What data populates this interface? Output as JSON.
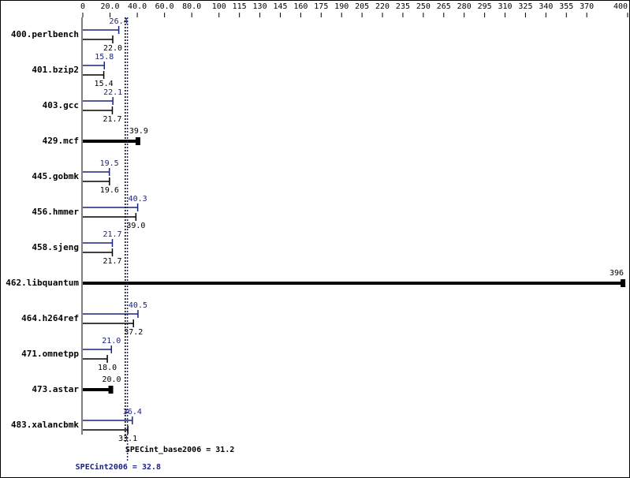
{
  "chart_data": {
    "type": "bar",
    "orientation": "horizontal",
    "categories": [
      "400.perlbench",
      "401.bzip2",
      "403.gcc",
      "429.mcf",
      "445.gobmk",
      "456.hmmer",
      "458.sjeng",
      "462.libquantum",
      "464.h264ref",
      "471.omnetpp",
      "473.astar",
      "483.xalancbmk"
    ],
    "series": [
      {
        "color": "#1a237e",
        "values": [
          26.4,
          15.8,
          22.1,
          null,
          19.5,
          40.3,
          21.7,
          null,
          40.5,
          21.0,
          null,
          36.4
        ],
        "value_labels": [
          "26.4",
          "15.8",
          "22.1",
          null,
          "19.5",
          "40.3",
          "21.7",
          null,
          "40.5",
          "21.0",
          null,
          "36.4"
        ]
      },
      {
        "color": "#000000",
        "values": [
          22.0,
          15.4,
          21.7,
          39.9,
          19.6,
          39.0,
          21.7,
          396,
          37.2,
          18.0,
          20.0,
          33.1
        ],
        "value_labels": [
          "22.0",
          "15.4",
          "21.7",
          "39.9",
          "19.6",
          "39.0",
          "21.7",
          "396",
          "37.2",
          "18.0",
          "20.0",
          "33.1"
        ]
      }
    ],
    "xlim": [
      0,
      400
    ],
    "xticks": [
      0,
      {
        "value": 20,
        "label": "20.0"
      },
      {
        "value": 40,
        "label": "40.0"
      },
      {
        "value": 60,
        "label": "60.0"
      },
      {
        "value": 80,
        "label": "80.0"
      },
      100,
      115,
      130,
      145,
      160,
      175,
      190,
      205,
      220,
      235,
      250,
      265,
      280,
      295,
      310,
      325,
      340,
      355,
      370,
      400
    ],
    "reference_lines": [
      {
        "label": "SPECint_base2006 = 31.2",
        "value": 31.2,
        "color": "#000000"
      },
      {
        "label": "SPECint2006 = 32.8",
        "value": 32.8,
        "color": "#1a237e"
      }
    ]
  }
}
